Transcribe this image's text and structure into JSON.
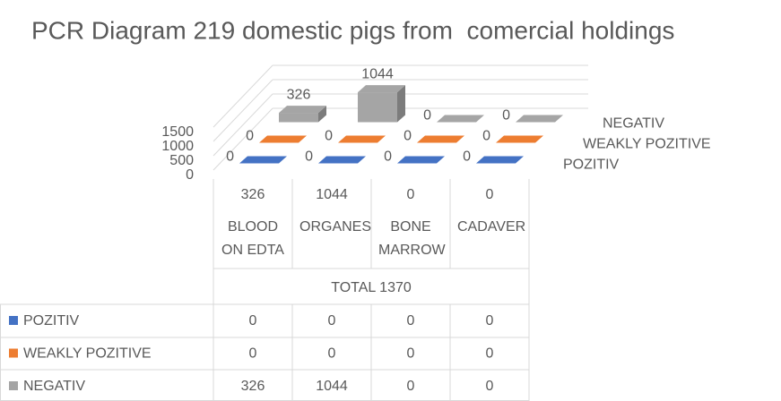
{
  "chart_data": {
    "type": "bar3d",
    "title": "PCR Diagram 219 domestic pigs from  comercial holdings",
    "category_sums": [
      326,
      1044,
      0,
      0
    ],
    "categories": [
      "BLOOD ON EDTA",
      "ORGANES",
      "BONE MARROW",
      "CADAVER"
    ],
    "category_group": "TOTAL 1370",
    "series": [
      {
        "name": "POZITIV",
        "color": "#4472c4",
        "values": [
          0,
          0,
          0,
          0
        ]
      },
      {
        "name": "WEAKLY POZITIVE",
        "color": "#ed7d31",
        "values": [
          0,
          0,
          0,
          0
        ]
      },
      {
        "name": "NEGATIV",
        "color": "#a5a5a5",
        "values": [
          326,
          1044,
          0,
          0
        ]
      }
    ],
    "ylim": [
      0,
      1500
    ],
    "yticks": [
      0,
      500,
      1000,
      1500
    ],
    "grid": true,
    "data_table": true
  }
}
